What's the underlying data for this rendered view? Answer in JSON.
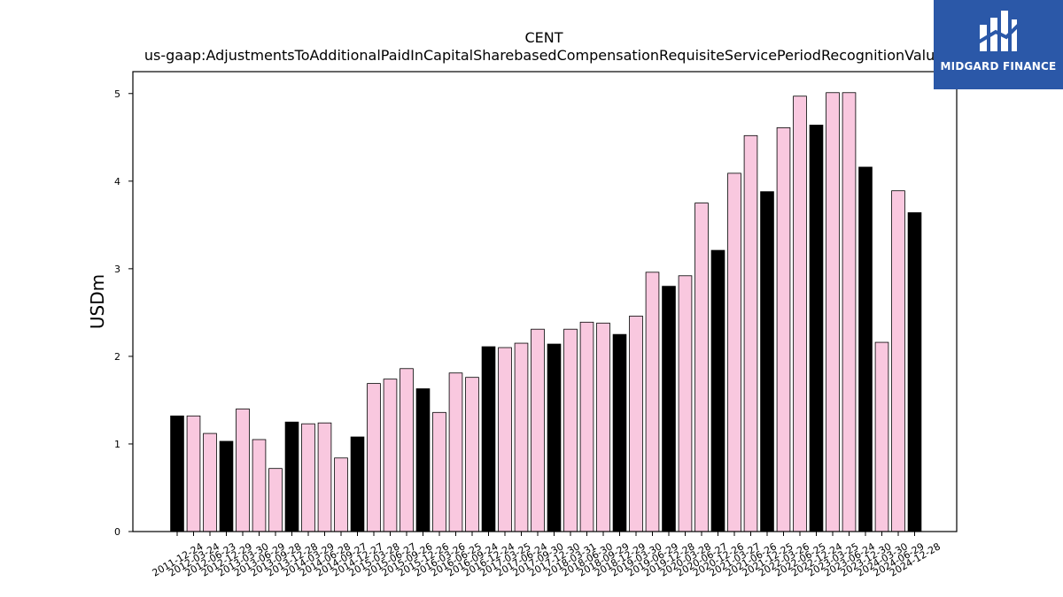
{
  "chart_data": {
    "type": "bar",
    "title": "CENT",
    "subtitle": "us-gaap:AdjustmentsToAdditionalPaidInCapitalSharebasedCompensationRequisiteServicePeriodRecognitionValue",
    "ylabel": "USDm",
    "xlabel": "",
    "ylim": [
      0,
      5.25
    ],
    "yticks": [
      0,
      1,
      2,
      3,
      4,
      5
    ],
    "grid": false,
    "colors": {
      "quarter": "#f9c8df",
      "year_end": "#000000",
      "edge": "#000000"
    },
    "categories": [
      "2011-12-24",
      "2012-03-24",
      "2012-06-23",
      "2012-12-29",
      "2013-03-30",
      "2013-06-29",
      "2013-09-28",
      "2013-12-28",
      "2014-03-29",
      "2014-06-28",
      "2014-09-27",
      "2014-12-27",
      "2015-03-28",
      "2015-06-27",
      "2015-09-26",
      "2015-12-26",
      "2016-03-26",
      "2016-06-25",
      "2016-09-24",
      "2016-12-24",
      "2017-03-25",
      "2017-06-24",
      "2017-09-30",
      "2017-12-30",
      "2018-03-31",
      "2018-06-30",
      "2018-09-29",
      "2018-12-29",
      "2019-03-30",
      "2019-06-29",
      "2019-12-28",
      "2020-03-28",
      "2020-06-27",
      "2020-12-26",
      "2021-03-27",
      "2021-06-26",
      "2021-12-25",
      "2022-03-26",
      "2022-06-25",
      "2022-12-24",
      "2023-03-25",
      "2023-06-24",
      "2023-12-30",
      "2024-03-30",
      "2024-06-29",
      "2024-12-28"
    ],
    "values": [
      1.32,
      1.32,
      1.12,
      1.03,
      1.4,
      1.05,
      0.72,
      1.25,
      1.23,
      1.24,
      0.84,
      1.08,
      1.69,
      1.74,
      1.86,
      1.63,
      1.36,
      1.81,
      1.76,
      2.11,
      2.1,
      2.15,
      2.31,
      2.14,
      2.31,
      2.39,
      2.38,
      2.25,
      2.46,
      2.96,
      2.8,
      2.92,
      3.75,
      3.21,
      4.09,
      4.52,
      3.88,
      4.61,
      4.97,
      4.64,
      5.01,
      5.01,
      4.16,
      2.16,
      3.89,
      3.64
    ],
    "highlight": [
      true,
      false,
      false,
      true,
      false,
      false,
      false,
      true,
      false,
      false,
      false,
      true,
      false,
      false,
      false,
      true,
      false,
      false,
      false,
      true,
      false,
      false,
      false,
      true,
      false,
      false,
      false,
      true,
      false,
      false,
      true,
      false,
      false,
      true,
      false,
      false,
      true,
      false,
      false,
      true,
      false,
      false,
      true,
      false,
      false,
      true
    ]
  },
  "logo": {
    "text": "MIDGARD FINANCE"
  }
}
